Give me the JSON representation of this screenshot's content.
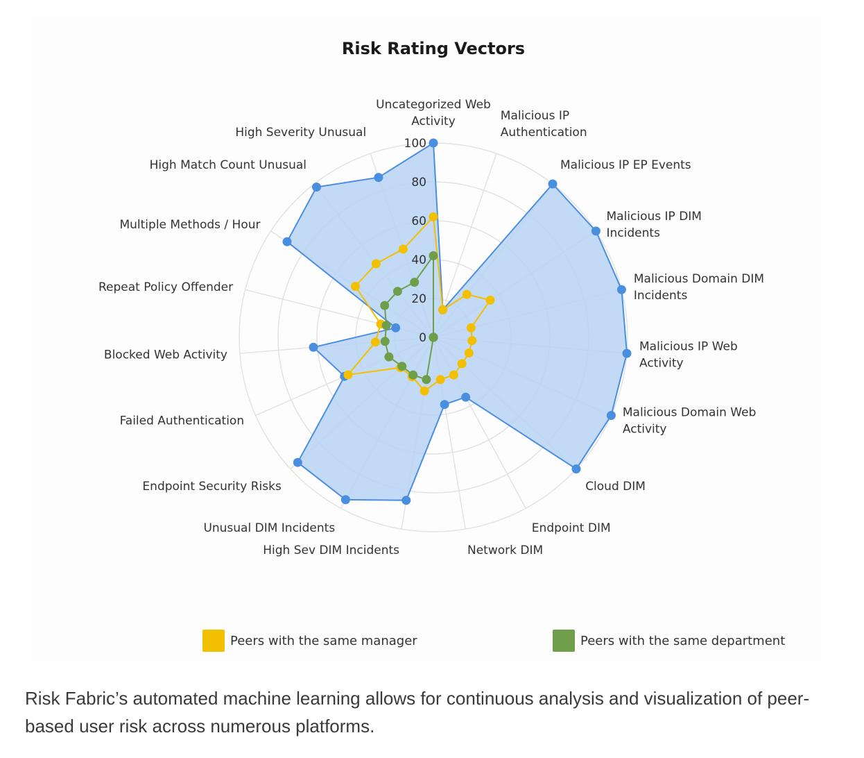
{
  "caption": "Risk Fabric’s automated machine learning allows for continuous analysis and visualization of peer-based user risk across numerous platforms.",
  "chart_data": {
    "type": "radar",
    "title": "Risk Rating Vectors",
    "categories": [
      [
        "Uncategorized Web",
        "Activity"
      ],
      [
        "Malicious IP",
        "Authentication"
      ],
      [
        "Malicious IP EP Events"
      ],
      [
        "Malicious IP DIM",
        "Incidents"
      ],
      [
        "Malicious Domain DIM",
        "Incidents"
      ],
      [
        "Malicious IP Web",
        "Activity"
      ],
      [
        "Malicious Domain Web",
        "Activity"
      ],
      [
        "Cloud DIM"
      ],
      [
        "Endpoint DIM"
      ],
      [
        "Network DIM"
      ],
      [
        "High Sev DIM Incidents"
      ],
      [
        "Unusual DIM Incidents"
      ],
      [
        "Endpoint Security Risks"
      ],
      [
        "Failed Authentication"
      ],
      [
        "Blocked Web Activity"
      ],
      [
        "Repeat Policy Offender"
      ],
      [
        "Multiple Methods / Hour"
      ],
      [
        "High Match Count Unusual"
      ],
      [
        "High Severity Unusual"
      ]
    ],
    "radial_ticks": [
      "0",
      "20",
      "40",
      "60",
      "80",
      "100"
    ],
    "rlim": [
      0,
      100
    ],
    "series": [
      {
        "values": [
          100,
          15,
          100,
          100,
          100,
          100,
          100,
          100,
          35,
          35,
          85,
          95,
          95,
          50,
          62,
          20,
          90,
          98,
          87
        ],
        "color": "#4a8ee0",
        "fill": "#b7d3f3"
      },
      {
        "name": "Peers with the same manager",
        "values": [
          62,
          15,
          28,
          35,
          20,
          20,
          20,
          20,
          22,
          22,
          28,
          23,
          23,
          48,
          30,
          28,
          48,
          48,
          48
        ],
        "color": "#f2c000"
      },
      {
        "name": "Peers with the same department",
        "values": [
          42,
          0,
          0,
          0,
          0,
          0,
          0,
          0,
          0,
          0,
          22,
          22,
          22,
          25,
          25,
          25,
          30,
          30,
          30
        ],
        "color": "#6f9e4a"
      }
    ],
    "grid": true,
    "legend_position": "bottom"
  }
}
